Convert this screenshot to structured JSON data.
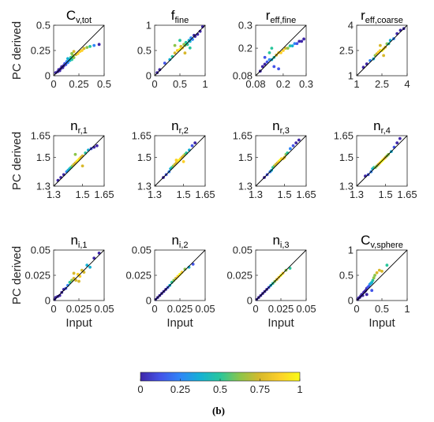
{
  "chart_data": {
    "type": "scatter",
    "caption": "(b)",
    "xlabel": "Input",
    "ylabel": "PC derived",
    "colorbar": {
      "ticks": [
        "0",
        "0.25",
        "0.5",
        "0.75",
        "1"
      ],
      "colors": [
        "#3e26a8",
        "#4354e8",
        "#2f86f7",
        "#15b1d4",
        "#29c69c",
        "#8cc54a",
        "#d8b92c",
        "#fdd02a",
        "#f9fb15"
      ]
    },
    "panels": [
      {
        "title": "C",
        "sub": "v,tot",
        "lim": [
          0,
          0.5
        ],
        "ticks": [
          0,
          0.25,
          0.5
        ],
        "tick_labels": [
          "0",
          "0.25",
          "0.5"
        ],
        "points": [
          [
            0.02,
            0.03
          ],
          [
            0.04,
            0.04
          ],
          [
            0.05,
            0.06
          ],
          [
            0.06,
            0.05
          ],
          [
            0.07,
            0.07
          ],
          [
            0.08,
            0.09
          ],
          [
            0.09,
            0.08
          ],
          [
            0.1,
            0.1
          ],
          [
            0.11,
            0.12
          ],
          [
            0.12,
            0.11
          ],
          [
            0.13,
            0.14
          ],
          [
            0.14,
            0.13
          ],
          [
            0.15,
            0.16
          ],
          [
            0.16,
            0.15
          ],
          [
            0.17,
            0.18
          ],
          [
            0.18,
            0.16
          ],
          [
            0.19,
            0.2
          ],
          [
            0.2,
            0.18
          ],
          [
            0.22,
            0.21
          ],
          [
            0.24,
            0.22
          ],
          [
            0.26,
            0.24
          ],
          [
            0.28,
            0.25
          ],
          [
            0.3,
            0.27
          ],
          [
            0.33,
            0.28
          ],
          [
            0.36,
            0.29
          ],
          [
            0.4,
            0.3
          ],
          [
            0.45,
            0.31
          ],
          [
            0.2,
            0.24
          ],
          [
            0.18,
            0.22
          ],
          [
            0.14,
            0.17
          ]
        ]
      },
      {
        "title": "f",
        "sub": "fine",
        "lim": [
          0,
          1
        ],
        "ticks": [
          0,
          0.5,
          1
        ],
        "tick_labels": [
          "0",
          "0.5",
          "1"
        ],
        "points": [
          [
            0.05,
            0.06
          ],
          [
            0.1,
            0.12
          ],
          [
            0.2,
            0.25
          ],
          [
            0.3,
            0.32
          ],
          [
            0.35,
            0.38
          ],
          [
            0.4,
            0.45
          ],
          [
            0.45,
            0.5
          ],
          [
            0.5,
            0.52
          ],
          [
            0.52,
            0.58
          ],
          [
            0.55,
            0.55
          ],
          [
            0.58,
            0.62
          ],
          [
            0.6,
            0.6
          ],
          [
            0.62,
            0.66
          ],
          [
            0.65,
            0.62
          ],
          [
            0.68,
            0.7
          ],
          [
            0.7,
            0.68
          ],
          [
            0.72,
            0.75
          ],
          [
            0.75,
            0.72
          ],
          [
            0.78,
            0.8
          ],
          [
            0.8,
            0.78
          ],
          [
            0.85,
            0.82
          ],
          [
            0.9,
            0.88
          ],
          [
            0.95,
            0.97
          ],
          [
            0.5,
            0.7
          ],
          [
            0.6,
            0.45
          ],
          [
            0.4,
            0.6
          ],
          [
            0.7,
            0.55
          ]
        ]
      },
      {
        "title": "r",
        "sub": "eff,fine",
        "lim": [
          0.08,
          0.3
        ],
        "ticks": [
          0.08,
          0.2,
          0.3
        ],
        "tick_labels": [
          "0.08",
          "0.2",
          "0.3"
        ],
        "points": [
          [
            0.1,
            0.1
          ],
          [
            0.11,
            0.12
          ],
          [
            0.12,
            0.13
          ],
          [
            0.13,
            0.14
          ],
          [
            0.14,
            0.15
          ],
          [
            0.15,
            0.15
          ],
          [
            0.16,
            0.16
          ],
          [
            0.17,
            0.17
          ],
          [
            0.18,
            0.18
          ],
          [
            0.19,
            0.18
          ],
          [
            0.2,
            0.19
          ],
          [
            0.21,
            0.2
          ],
          [
            0.22,
            0.2
          ],
          [
            0.23,
            0.21
          ],
          [
            0.24,
            0.21
          ],
          [
            0.25,
            0.22
          ],
          [
            0.26,
            0.22
          ],
          [
            0.27,
            0.23
          ],
          [
            0.28,
            0.23
          ],
          [
            0.29,
            0.24
          ],
          [
            0.15,
            0.2
          ],
          [
            0.16,
            0.12
          ],
          [
            0.18,
            0.11
          ],
          [
            0.14,
            0.18
          ],
          [
            0.12,
            0.16
          ]
        ]
      },
      {
        "title": "r",
        "sub": "eff,coarse",
        "lim": [
          1,
          4
        ],
        "ticks": [
          1,
          2.5,
          4
        ],
        "tick_labels": [
          "1",
          "2.5",
          "4"
        ],
        "points": [
          [
            1.4,
            1.5
          ],
          [
            1.6,
            1.7
          ],
          [
            1.8,
            1.9
          ],
          [
            2.0,
            2.0
          ],
          [
            2.1,
            2.2
          ],
          [
            2.2,
            2.3
          ],
          [
            2.3,
            2.4
          ],
          [
            2.4,
            2.5
          ],
          [
            2.5,
            2.5
          ],
          [
            2.6,
            2.6
          ],
          [
            2.7,
            2.7
          ],
          [
            2.8,
            2.9
          ],
          [
            2.9,
            2.9
          ],
          [
            3.0,
            3.1
          ],
          [
            3.2,
            3.2
          ],
          [
            3.4,
            3.5
          ],
          [
            3.6,
            3.7
          ],
          [
            3.8,
            3.8
          ],
          [
            2.4,
            2.8
          ],
          [
            2.6,
            2.2
          ]
        ]
      },
      {
        "title": "n",
        "sub": "r,1",
        "lim": [
          1.3,
          1.65
        ],
        "ticks": [
          1.3,
          1.5,
          1.65
        ],
        "tick_labels": [
          "1.3",
          "1.5",
          "1.65"
        ],
        "points": [
          [
            1.33,
            1.34
          ],
          [
            1.35,
            1.36
          ],
          [
            1.37,
            1.38
          ],
          [
            1.39,
            1.4
          ],
          [
            1.4,
            1.41
          ],
          [
            1.41,
            1.42
          ],
          [
            1.42,
            1.43
          ],
          [
            1.43,
            1.44
          ],
          [
            1.44,
            1.45
          ],
          [
            1.45,
            1.46
          ],
          [
            1.46,
            1.47
          ],
          [
            1.47,
            1.48
          ],
          [
            1.48,
            1.49
          ],
          [
            1.49,
            1.5
          ],
          [
            1.5,
            1.51
          ],
          [
            1.52,
            1.53
          ],
          [
            1.54,
            1.55
          ],
          [
            1.56,
            1.56
          ],
          [
            1.58,
            1.57
          ],
          [
            1.6,
            1.58
          ],
          [
            1.45,
            1.52
          ],
          [
            1.5,
            1.44
          ]
        ]
      },
      {
        "title": "n",
        "sub": "r,2",
        "lim": [
          1.3,
          1.65
        ],
        "ticks": [
          1.3,
          1.5,
          1.65
        ],
        "tick_labels": [
          "1.3",
          "1.5",
          "1.65"
        ],
        "points": [
          [
            1.36,
            1.36
          ],
          [
            1.38,
            1.38
          ],
          [
            1.4,
            1.4
          ],
          [
            1.41,
            1.42
          ],
          [
            1.42,
            1.43
          ],
          [
            1.43,
            1.44
          ],
          [
            1.44,
            1.45
          ],
          [
            1.45,
            1.46
          ],
          [
            1.46,
            1.47
          ],
          [
            1.47,
            1.48
          ],
          [
            1.48,
            1.49
          ],
          [
            1.49,
            1.5
          ],
          [
            1.5,
            1.51
          ],
          [
            1.51,
            1.52
          ],
          [
            1.52,
            1.53
          ],
          [
            1.54,
            1.55
          ],
          [
            1.56,
            1.58
          ],
          [
            1.58,
            1.6
          ],
          [
            1.45,
            1.48
          ],
          [
            1.5,
            1.47
          ]
        ]
      },
      {
        "title": "n",
        "sub": "r,3",
        "lim": [
          1.3,
          1.65
        ],
        "ticks": [
          1.3,
          1.5,
          1.65
        ],
        "tick_labels": [
          "1.3",
          "1.5",
          "1.65"
        ],
        "points": [
          [
            1.36,
            1.36
          ],
          [
            1.38,
            1.38
          ],
          [
            1.4,
            1.4
          ],
          [
            1.41,
            1.41
          ],
          [
            1.42,
            1.43
          ],
          [
            1.43,
            1.44
          ],
          [
            1.44,
            1.45
          ],
          [
            1.45,
            1.46
          ],
          [
            1.46,
            1.47
          ],
          [
            1.47,
            1.48
          ],
          [
            1.48,
            1.49
          ],
          [
            1.49,
            1.49
          ],
          [
            1.5,
            1.5
          ],
          [
            1.51,
            1.52
          ],
          [
            1.52,
            1.53
          ],
          [
            1.54,
            1.56
          ],
          [
            1.56,
            1.58
          ],
          [
            1.58,
            1.6
          ],
          [
            1.6,
            1.62
          ]
        ]
      },
      {
        "title": "n",
        "sub": "r,4",
        "lim": [
          1.3,
          1.65
        ],
        "ticks": [
          1.3,
          1.5,
          1.65
        ],
        "tick_labels": [
          "1.3",
          "1.5",
          "1.65"
        ],
        "points": [
          [
            1.36,
            1.37
          ],
          [
            1.38,
            1.38
          ],
          [
            1.4,
            1.4
          ],
          [
            1.41,
            1.42
          ],
          [
            1.42,
            1.43
          ],
          [
            1.43,
            1.43
          ],
          [
            1.44,
            1.44
          ],
          [
            1.45,
            1.45
          ],
          [
            1.46,
            1.46
          ],
          [
            1.47,
            1.47
          ],
          [
            1.48,
            1.48
          ],
          [
            1.49,
            1.49
          ],
          [
            1.5,
            1.5
          ],
          [
            1.51,
            1.51
          ],
          [
            1.52,
            1.52
          ],
          [
            1.54,
            1.54
          ],
          [
            1.56,
            1.57
          ],
          [
            1.58,
            1.6
          ],
          [
            1.6,
            1.63
          ]
        ]
      },
      {
        "title": "n",
        "sub": "i,1",
        "lim": [
          0,
          0.05
        ],
        "ticks": [
          0,
          0.025,
          0.05
        ],
        "tick_labels": [
          "0",
          "0.025",
          "0.05"
        ],
        "points": [
          [
            0.001,
            0.001
          ],
          [
            0.002,
            0.003
          ],
          [
            0.004,
            0.004
          ],
          [
            0.006,
            0.005
          ],
          [
            0.008,
            0.008
          ],
          [
            0.01,
            0.011
          ],
          [
            0.012,
            0.012
          ],
          [
            0.014,
            0.015
          ],
          [
            0.016,
            0.018
          ],
          [
            0.018,
            0.02
          ],
          [
            0.02,
            0.022
          ],
          [
            0.022,
            0.02
          ],
          [
            0.024,
            0.026
          ],
          [
            0.026,
            0.024
          ],
          [
            0.028,
            0.03
          ],
          [
            0.03,
            0.028
          ],
          [
            0.033,
            0.035
          ],
          [
            0.036,
            0.033
          ],
          [
            0.04,
            0.042
          ],
          [
            0.045,
            0.047
          ],
          [
            0.02,
            0.027
          ],
          [
            0.025,
            0.019
          ]
        ]
      },
      {
        "title": "n",
        "sub": "i,2",
        "lim": [
          0,
          0.05
        ],
        "ticks": [
          0,
          0.025,
          0.05
        ],
        "tick_labels": [
          "0",
          "0.025",
          "0.05"
        ],
        "points": [
          [
            0.001,
            0.001
          ],
          [
            0.003,
            0.003
          ],
          [
            0.005,
            0.005
          ],
          [
            0.007,
            0.007
          ],
          [
            0.009,
            0.009
          ],
          [
            0.011,
            0.011
          ],
          [
            0.013,
            0.013
          ],
          [
            0.015,
            0.015
          ],
          [
            0.017,
            0.018
          ],
          [
            0.019,
            0.02
          ],
          [
            0.021,
            0.022
          ],
          [
            0.023,
            0.024
          ],
          [
            0.025,
            0.026
          ],
          [
            0.027,
            0.028
          ],
          [
            0.03,
            0.031
          ],
          [
            0.034,
            0.033
          ],
          [
            0.038,
            0.036
          ]
        ]
      },
      {
        "title": "n",
        "sub": "i,3",
        "lim": [
          0,
          0.05
        ],
        "ticks": [
          0,
          0.025,
          0.05
        ],
        "tick_labels": [
          "0",
          "0.025",
          "0.05"
        ],
        "points": [
          [
            0.001,
            0.001
          ],
          [
            0.003,
            0.003
          ],
          [
            0.005,
            0.005
          ],
          [
            0.007,
            0.007
          ],
          [
            0.009,
            0.009
          ],
          [
            0.011,
            0.011
          ],
          [
            0.013,
            0.013
          ],
          [
            0.015,
            0.015
          ],
          [
            0.017,
            0.017
          ],
          [
            0.019,
            0.019
          ],
          [
            0.021,
            0.021
          ],
          [
            0.023,
            0.023
          ],
          [
            0.025,
            0.025
          ],
          [
            0.027,
            0.027
          ],
          [
            0.03,
            0.03
          ],
          [
            0.034,
            0.032
          ]
        ]
      },
      {
        "title": "C",
        "sub": "v,sphere",
        "lim": [
          0,
          1
        ],
        "ticks": [
          0,
          0.5,
          1
        ],
        "tick_labels": [
          "0",
          "0.5",
          "1"
        ],
        "points": [
          [
            0.02,
            0.02
          ],
          [
            0.04,
            0.05
          ],
          [
            0.06,
            0.06
          ],
          [
            0.08,
            0.09
          ],
          [
            0.1,
            0.12
          ],
          [
            0.12,
            0.1
          ],
          [
            0.14,
            0.16
          ],
          [
            0.16,
            0.18
          ],
          [
            0.18,
            0.2
          ],
          [
            0.2,
            0.24
          ],
          [
            0.22,
            0.26
          ],
          [
            0.24,
            0.28
          ],
          [
            0.26,
            0.32
          ],
          [
            0.28,
            0.34
          ],
          [
            0.3,
            0.36
          ],
          [
            0.32,
            0.4
          ],
          [
            0.34,
            0.45
          ],
          [
            0.36,
            0.5
          ],
          [
            0.4,
            0.55
          ],
          [
            0.45,
            0.6
          ],
          [
            0.5,
            0.58
          ],
          [
            0.6,
            0.7
          ],
          [
            0.3,
            0.2
          ],
          [
            0.2,
            0.12
          ]
        ]
      }
    ]
  }
}
